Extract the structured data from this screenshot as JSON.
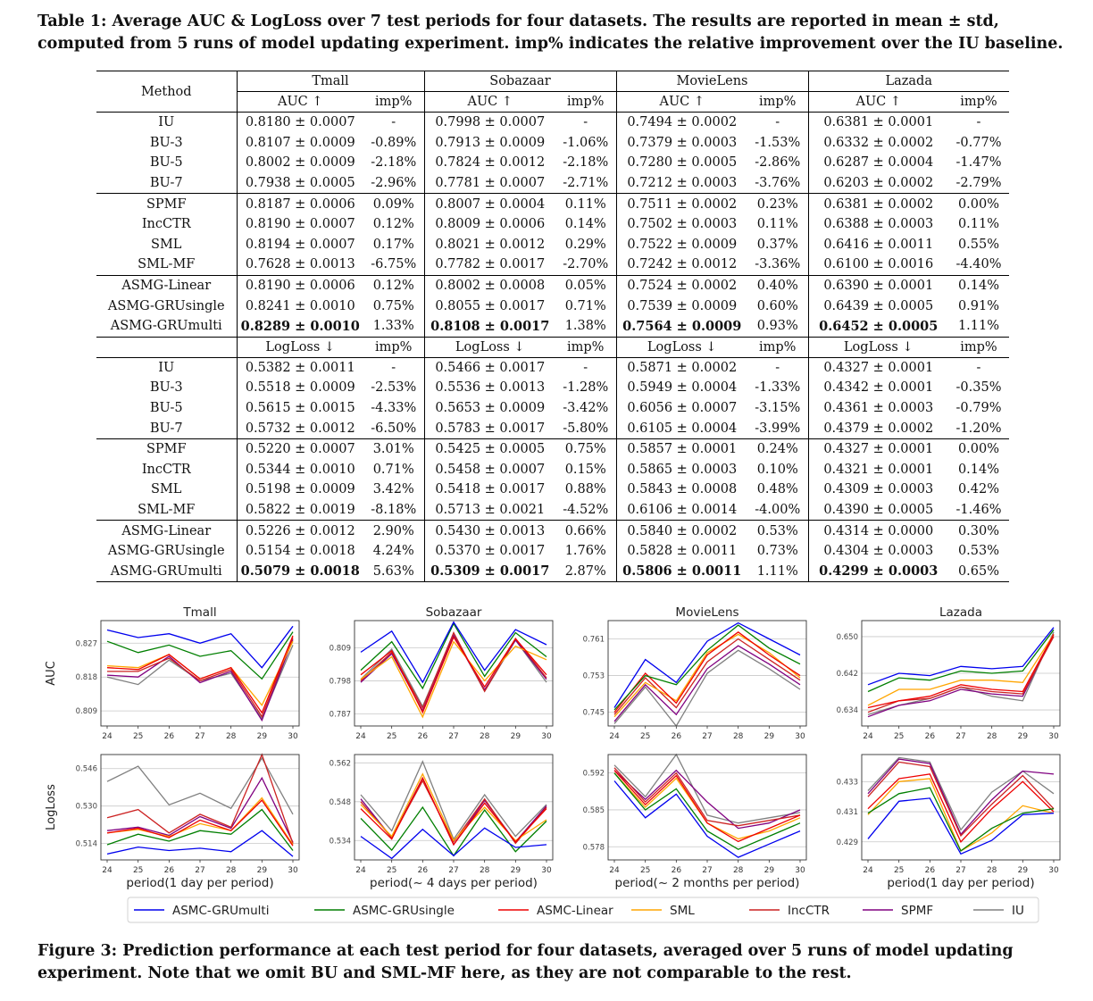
{
  "table_caption": "Table 1: Average AUC & LogLoss over 7 test periods for four datasets. The results are reported in mean ± std, computed from 5 runs of model updating experiment. imp% indicates the relative improvement over the IU baseline.",
  "figure_caption": "Figure 3: Prediction performance at each test period for four datasets, averaged over 5 runs of model updating experiment. Note that we omit BU and SML-MF here, as they are not comparable to the rest.",
  "table": {
    "method_header": "Method",
    "datasets": [
      "Tmall",
      "Sobazaar",
      "MovieLens",
      "Lazada"
    ],
    "auc_header": "AUC ↑",
    "logloss_header": "LogLoss ↓",
    "imp_header": "imp%",
    "auc_rows": [
      {
        "method": "IU",
        "cells": [
          "0.8180 ± 0.0007",
          "-",
          "0.7998 ± 0.0007",
          "-",
          "0.7494 ± 0.0002",
          "-",
          "0.6381 ± 0.0001",
          "-"
        ]
      },
      {
        "method": "BU-3",
        "cells": [
          "0.8107 ± 0.0009",
          "-0.89%",
          "0.7913 ± 0.0009",
          "-1.06%",
          "0.7379 ± 0.0003",
          "-1.53%",
          "0.6332 ± 0.0002",
          "-0.77%"
        ]
      },
      {
        "method": "BU-5",
        "cells": [
          "0.8002 ± 0.0009",
          "-2.18%",
          "0.7824 ± 0.0012",
          "-2.18%",
          "0.7280 ± 0.0005",
          "-2.86%",
          "0.6287 ± 0.0004",
          "-1.47%"
        ]
      },
      {
        "method": "BU-7",
        "cells": [
          "0.7938 ± 0.0005",
          "-2.96%",
          "0.7781 ± 0.0007",
          "-2.71%",
          "0.7212 ± 0.0003",
          "-3.76%",
          "0.6203 ± 0.0002",
          "-2.79%"
        ]
      },
      {
        "method": "SPMF",
        "cells": [
          "0.8187 ± 0.0006",
          "0.09%",
          "0.8007 ± 0.0004",
          "0.11%",
          "0.7511 ± 0.0002",
          "0.23%",
          "0.6381 ± 0.0002",
          "0.00%"
        ]
      },
      {
        "method": "IncCTR",
        "cells": [
          "0.8190 ± 0.0007",
          "0.12%",
          "0.8009 ± 0.0006",
          "0.14%",
          "0.7502 ± 0.0003",
          "0.11%",
          "0.6388 ± 0.0003",
          "0.11%"
        ]
      },
      {
        "method": "SML",
        "cells": [
          "0.8194 ± 0.0007",
          "0.17%",
          "0.8021 ± 0.0012",
          "0.29%",
          "0.7522 ± 0.0009",
          "0.37%",
          "0.6416 ± 0.0011",
          "0.55%"
        ]
      },
      {
        "method": "SML-MF",
        "cells": [
          "0.7628 ± 0.0013",
          "-6.75%",
          "0.7782 ± 0.0017",
          "-2.70%",
          "0.7242 ± 0.0012",
          "-3.36%",
          "0.6100 ± 0.0016",
          "-4.40%"
        ]
      },
      {
        "method": "ASMG-Linear",
        "cells": [
          "0.8190 ± 0.0006",
          "0.12%",
          "0.8002 ± 0.0008",
          "0.05%",
          "0.7524 ± 0.0002",
          "0.40%",
          "0.6390 ± 0.0001",
          "0.14%"
        ]
      },
      {
        "method": "ASMG-GRUsingle",
        "cells": [
          "0.8241 ± 0.0010",
          "0.75%",
          "0.8055 ± 0.0017",
          "0.71%",
          "0.7539 ± 0.0009",
          "0.60%",
          "0.6439 ± 0.0005",
          "0.91%"
        ]
      },
      {
        "method": "ASMG-GRUmulti",
        "bold": true,
        "cells": [
          "0.8289 ± 0.0010",
          "1.33%",
          "0.8108 ± 0.0017",
          "1.38%",
          "0.7564 ± 0.0009",
          "0.93%",
          "0.6452 ± 0.0005",
          "1.11%"
        ]
      }
    ],
    "logloss_rows": [
      {
        "method": "IU",
        "cells": [
          "0.5382 ± 0.0011",
          "-",
          "0.5466 ± 0.0017",
          "-",
          "0.5871 ± 0.0002",
          "-",
          "0.4327 ± 0.0001",
          "-"
        ]
      },
      {
        "method": "BU-3",
        "cells": [
          "0.5518 ± 0.0009",
          "-2.53%",
          "0.5536 ± 0.0013",
          "-1.28%",
          "0.5949 ± 0.0004",
          "-1.33%",
          "0.4342 ± 0.0001",
          "-0.35%"
        ]
      },
      {
        "method": "BU-5",
        "cells": [
          "0.5615 ± 0.0015",
          "-4.33%",
          "0.5653 ± 0.0009",
          "-3.42%",
          "0.6056 ± 0.0007",
          "-3.15%",
          "0.4361 ± 0.0003",
          "-0.79%"
        ]
      },
      {
        "method": "BU-7",
        "cells": [
          "0.5732 ± 0.0012",
          "-6.50%",
          "0.5783 ± 0.0017",
          "-5.80%",
          "0.6105 ± 0.0004",
          "-3.99%",
          "0.4379 ± 0.0002",
          "-1.20%"
        ]
      },
      {
        "method": "SPMF",
        "cells": [
          "0.5220 ± 0.0007",
          "3.01%",
          "0.5425 ± 0.0005",
          "0.75%",
          "0.5857 ± 0.0001",
          "0.24%",
          "0.4327 ± 0.0001",
          "0.00%"
        ]
      },
      {
        "method": "IncCTR",
        "cells": [
          "0.5344 ± 0.0010",
          "0.71%",
          "0.5458 ± 0.0007",
          "0.15%",
          "0.5865 ± 0.0003",
          "0.10%",
          "0.4321 ± 0.0001",
          "0.14%"
        ]
      },
      {
        "method": "SML",
        "cells": [
          "0.5198 ± 0.0009",
          "3.42%",
          "0.5418 ± 0.0017",
          "0.88%",
          "0.5843 ± 0.0008",
          "0.48%",
          "0.4309 ± 0.0003",
          "0.42%"
        ]
      },
      {
        "method": "SML-MF",
        "cells": [
          "0.5822 ± 0.0019",
          "-8.18%",
          "0.5713 ± 0.0021",
          "-4.52%",
          "0.6106 ± 0.0014",
          "-4.00%",
          "0.4390 ± 0.0005",
          "-1.46%"
        ]
      },
      {
        "method": "ASMG-Linear",
        "cells": [
          "0.5226 ± 0.0012",
          "2.90%",
          "0.5430 ± 0.0013",
          "0.66%",
          "0.5840 ± 0.0002",
          "0.53%",
          "0.4314 ± 0.0000",
          "0.30%"
        ]
      },
      {
        "method": "ASMG-GRUsingle",
        "cells": [
          "0.5154 ± 0.0018",
          "4.24%",
          "0.5370 ± 0.0017",
          "1.76%",
          "0.5828 ± 0.0011",
          "0.73%",
          "0.4304 ± 0.0003",
          "0.53%"
        ]
      },
      {
        "method": "ASMG-GRUmulti",
        "bold": true,
        "cells": [
          "0.5079 ± 0.0018",
          "5.63%",
          "0.5309 ± 0.0017",
          "2.87%",
          "0.5806 ± 0.0011",
          "1.11%",
          "0.4299 ± 0.0003",
          "0.65%"
        ]
      }
    ]
  },
  "chart_data": {
    "type": "line",
    "x": [
      24,
      25,
      26,
      27,
      28,
      29,
      30
    ],
    "ylabel_auc": "AUC",
    "ylabel_logloss": "LogLoss",
    "legend_placement": "bottom",
    "legend": [
      {
        "name": "ASMC-GRUmulti",
        "color": "#0000ee"
      },
      {
        "name": "ASMC-GRUsingle",
        "color": "#007f00"
      },
      {
        "name": "ASMC-Linear",
        "color": "#ee0000"
      },
      {
        "name": "SML",
        "color": "#ffa500"
      },
      {
        "name": "IncCTR",
        "color": "#cc2222"
      },
      {
        "name": "SPMF",
        "color": "#800080"
      },
      {
        "name": "IU",
        "color": "#808080"
      }
    ],
    "panels": [
      {
        "title": "Tmall",
        "xlabel": "period(1 day per period)",
        "auc": {
          "ylim": [
            0.805,
            0.833
          ],
          "ticks": [
            0.809,
            0.818,
            0.827
          ],
          "series": [
            [
              0.8305,
              0.8285,
              0.8295,
              0.827,
              0.8295,
              0.8205,
              0.8315
            ],
            [
              0.8275,
              0.8245,
              0.8265,
              0.8235,
              0.825,
              0.8175,
              0.83
            ],
            [
              0.8205,
              0.82,
              0.824,
              0.8175,
              0.8205,
              0.8085,
              0.829
            ],
            [
              0.821,
              0.8205,
              0.824,
              0.8175,
              0.8205,
              0.8105,
              0.8275
            ],
            [
              0.8195,
              0.8195,
              0.823,
              0.817,
              0.82,
              0.8075,
              0.8285
            ],
            [
              0.8185,
              0.818,
              0.8235,
              0.8165,
              0.8195,
              0.8065,
              0.828
            ],
            [
              0.818,
              0.816,
              0.8225,
              0.817,
              0.819,
              0.807,
              0.8265
            ]
          ]
        },
        "logloss": {
          "ylim": [
            0.507,
            0.552
          ],
          "ticks": [
            0.514,
            0.53,
            0.546
          ],
          "series": [
            [
              0.5095,
              0.5125,
              0.511,
              0.512,
              0.5105,
              0.5195,
              0.5085
            ],
            [
              0.5135,
              0.518,
              0.515,
              0.5195,
              0.518,
              0.5285,
              0.511
            ],
            [
              0.5185,
              0.5205,
              0.5165,
              0.524,
              0.5195,
              0.5325,
              0.513
            ],
            [
              0.5185,
              0.52,
              0.517,
              0.5225,
              0.5195,
              0.5335,
              0.5135
            ],
            [
              0.525,
              0.5285,
              0.5185,
              0.5265,
              0.521,
              0.552,
              0.514
            ],
            [
              0.5195,
              0.521,
              0.5175,
              0.5255,
              0.5205,
              0.542,
              0.5145
            ],
            [
              0.5405,
              0.547,
              0.5305,
              0.5355,
              0.529,
              0.5505,
              0.5265
            ]
          ]
        }
      },
      {
        "title": "Sobazaar",
        "xlabel": "period(~ 4 days per period)",
        "auc": {
          "ylim": [
            0.783,
            0.818
          ],
          "ticks": [
            0.787,
            0.798,
            0.809
          ],
          "series": [
            [
              0.8075,
              0.8145,
              0.7975,
              0.8175,
              0.8015,
              0.815,
              0.81
            ],
            [
              0.8015,
              0.811,
              0.7955,
              0.817,
              0.7995,
              0.814,
              0.806
            ],
            [
              0.8,
              0.808,
              0.7875,
              0.8125,
              0.796,
              0.812,
              0.8
            ],
            [
              0.7985,
              0.806,
              0.786,
              0.811,
              0.798,
              0.8095,
              0.805
            ],
            [
              0.798,
              0.8075,
              0.789,
              0.814,
              0.7945,
              0.812,
              0.799
            ],
            [
              0.7975,
              0.807,
              0.788,
              0.813,
              0.795,
              0.8115,
              0.7985
            ],
            [
              0.7985,
              0.8085,
              0.7895,
              0.8135,
              0.7945,
              0.8115,
              0.7975
            ]
          ]
        },
        "logloss": {
          "ylim": [
            0.527,
            0.565
          ],
          "ticks": [
            0.534,
            0.548,
            0.562
          ],
          "series": [
            [
              0.5355,
              0.5275,
              0.538,
              0.5285,
              0.5385,
              0.5315,
              0.5325
            ],
            [
              0.542,
              0.5305,
              0.546,
              0.5285,
              0.545,
              0.53,
              0.541
            ],
            [
              0.5455,
              0.5345,
              0.5565,
              0.5325,
              0.5475,
              0.5335,
              0.5455
            ],
            [
              0.547,
              0.5355,
              0.558,
              0.534,
              0.546,
              0.534,
              0.5415
            ],
            [
              0.548,
              0.535,
              0.5555,
              0.5335,
              0.549,
              0.533,
              0.546
            ],
            [
              0.549,
              0.535,
              0.5565,
              0.5325,
              0.5485,
              0.5335,
              0.5465
            ],
            [
              0.5505,
              0.5375,
              0.5625,
              0.5345,
              0.5505,
              0.5355,
              0.547
            ]
          ]
        }
      },
      {
        "title": "MovieLens",
        "xlabel": "period(~ 2 months per period)",
        "auc": {
          "ylim": [
            0.742,
            0.765
          ],
          "ticks": [
            0.745,
            0.753,
            0.761
          ],
          "series": [
            [
              0.746,
              0.7565,
              0.7515,
              0.7605,
              0.7645,
              0.761,
              0.7575
            ],
            [
              0.7455,
              0.753,
              0.751,
              0.7585,
              0.764,
              0.759,
              0.7555
            ],
            [
              0.745,
              0.7535,
              0.747,
              0.7575,
              0.7625,
              0.7575,
              0.753
            ],
            [
              0.744,
              0.7515,
              0.7475,
              0.758,
              0.762,
              0.758,
              0.7525
            ],
            [
              0.7445,
              0.7525,
              0.746,
              0.756,
              0.761,
              0.7565,
              0.752
            ],
            [
              0.743,
              0.751,
              0.7445,
              0.7545,
              0.7595,
              0.7555,
              0.751
            ],
            [
              0.7425,
              0.7505,
              0.742,
              0.7535,
              0.7585,
              0.7545,
              0.75
            ]
          ]
        },
        "logloss": {
          "ylim": [
            0.5755,
            0.5955
          ],
          "ticks": [
            0.578,
            0.585,
            0.592
          ],
          "series": [
            [
              0.5905,
              0.5835,
              0.588,
              0.58,
              0.576,
              0.5785,
              0.581
            ],
            [
              0.592,
              0.585,
              0.589,
              0.581,
              0.5775,
              0.58,
              0.5825
            ],
            [
              0.5925,
              0.586,
              0.5915,
              0.5825,
              0.579,
              0.5815,
              0.584
            ],
            [
              0.592,
              0.5855,
              0.591,
              0.5825,
              0.5795,
              0.581,
              0.5835
            ],
            [
              0.593,
              0.5865,
              0.592,
              0.583,
              0.582,
              0.583,
              0.584
            ],
            [
              0.5925,
              0.587,
              0.5925,
              0.5865,
              0.5815,
              0.5825,
              0.585
            ],
            [
              0.5935,
              0.5875,
              0.5955,
              0.584,
              0.5825,
              0.5835,
              0.5845
            ]
          ]
        }
      },
      {
        "title": "Lazada",
        "xlabel": "period(1 day per period)",
        "auc": {
          "ylim": [
            0.6305,
            0.6535
          ],
          "ticks": [
            0.634,
            0.642,
            0.65
          ],
          "series": [
            [
              0.6395,
              0.642,
              0.6415,
              0.6435,
              0.643,
              0.6435,
              0.652
            ],
            [
              0.638,
              0.641,
              0.6405,
              0.6425,
              0.642,
              0.6425,
              0.6515
            ],
            [
              0.6345,
              0.636,
              0.637,
              0.6395,
              0.6385,
              0.638,
              0.6505
            ],
            [
              0.635,
              0.6385,
              0.6385,
              0.6405,
              0.6405,
              0.64,
              0.6505
            ],
            [
              0.6335,
              0.636,
              0.6365,
              0.639,
              0.638,
              0.6375,
              0.65
            ],
            [
              0.6325,
              0.635,
              0.636,
              0.6385,
              0.6375,
              0.637,
              0.6505
            ],
            [
              0.633,
              0.635,
              0.6365,
              0.639,
              0.637,
              0.636,
              0.651
            ]
          ]
        },
        "logloss": {
          "ylim": [
            0.4278,
            0.4348
          ],
          "ticks": [
            0.429,
            0.431,
            0.433
          ],
          "series": [
            [
              0.4292,
              0.4317,
              0.4319,
              0.4282,
              0.4291,
              0.4308,
              0.4309
            ],
            [
              0.4309,
              0.4322,
              0.4326,
              0.4284,
              0.4299,
              0.4309,
              0.4312
            ],
            [
              0.4312,
              0.4332,
              0.4335,
              0.429,
              0.4312,
              0.433,
              0.431
            ],
            [
              0.4308,
              0.433,
              0.4332,
              0.4284,
              0.4296,
              0.4314,
              0.4309
            ],
            [
              0.432,
              0.4343,
              0.434,
              0.4294,
              0.4315,
              0.4334,
              0.4312
            ],
            [
              0.4322,
              0.4345,
              0.4342,
              0.4295,
              0.4318,
              0.4337,
              0.4335
            ],
            [
              0.4324,
              0.4346,
              0.4343,
              0.4298,
              0.4323,
              0.4337,
              0.4322
            ]
          ]
        }
      }
    ]
  }
}
